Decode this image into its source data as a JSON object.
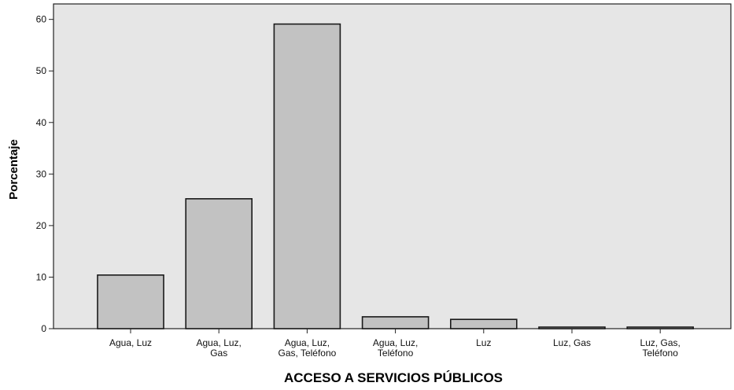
{
  "chart_data": {
    "type": "bar",
    "categories": [
      "Agua, Luz",
      "Agua, Luz, Gas",
      "Agua, Luz, Gas, Teléfono",
      "Agua, Luz, Teléfono",
      "Luz",
      "Luz, Gas",
      "Luz, Gas, Teléfono"
    ],
    "category_label_lines": [
      [
        "Agua, Luz"
      ],
      [
        "Agua, Luz,",
        "Gas"
      ],
      [
        "Agua, Luz,",
        "Gas, Teléfono"
      ],
      [
        "Agua, Luz,",
        "Teléfono"
      ],
      [
        "Luz"
      ],
      [
        "Luz, Gas"
      ],
      [
        "Luz, Gas,",
        "Teléfono"
      ]
    ],
    "values": [
      10.4,
      25.2,
      59.1,
      2.3,
      1.8,
      0.3,
      0.3
    ],
    "title": "",
    "xlabel": "ACCESO A SERVICIOS PÚBLICOS",
    "ylabel": "Porcentaje",
    "ylim": [
      0,
      63
    ],
    "yticks": [
      0,
      10,
      20,
      30,
      40,
      50,
      60
    ],
    "grid": false,
    "legend": "none",
    "colors": {
      "plot_background": "#e6e6e6",
      "bar_fill": "#c2c2c2",
      "bar_stroke": "#1a1a1a",
      "axis": "#222222"
    }
  }
}
